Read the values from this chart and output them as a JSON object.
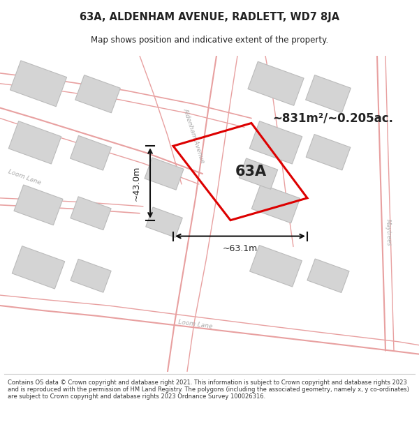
{
  "title_line1": "63A, ALDENHAM AVENUE, RADLETT, WD7 8JA",
  "title_line2": "Map shows position and indicative extent of the property.",
  "map_bg": "#f8f6f4",
  "footer_text": "Contains OS data © Crown copyright and database right 2021. This information is subject to Crown copyright and database rights 2023 and is reproduced with the permission of HM Land Registry. The polygons (including the associated geometry, namely x, y co-ordinates) are subject to Crown copyright and database rights 2023 Ordnance Survey 100026316.",
  "property_label": "63A",
  "area_label": "~831m²/~0.205ac.",
  "dim_width": "~63.1m",
  "dim_height": "~43.0m",
  "road_line_color": "#e8a0a0",
  "building_fill": "#d4d4d4",
  "building_edge": "#bbbbbb",
  "property_outline": "#dd0000",
  "road_label_color": "#aaaaaa",
  "dim_line_color": "#111111",
  "text_color": "#222222"
}
